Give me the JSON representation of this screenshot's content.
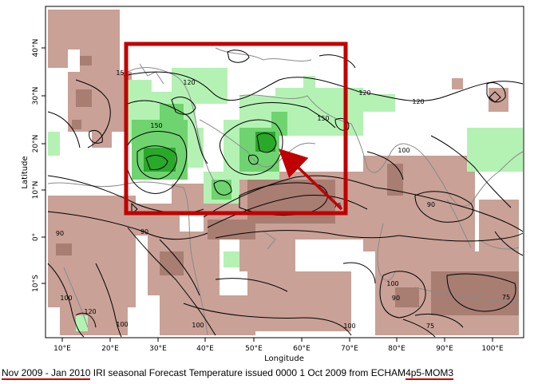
{
  "map": {
    "xlabel": "Longitude",
    "ylabel": "Latitude",
    "lon_ticks": [
      "10°E",
      "20°E",
      "30°E",
      "40°E",
      "50°E",
      "60°E",
      "70°E",
      "80°E",
      "90°E",
      "100°E"
    ],
    "lat_ticks": [
      "40°N",
      "30°N",
      "20°N",
      "10°N",
      "0°",
      "10°S"
    ],
    "contour_labels": [
      "150",
      "120",
      "150",
      "120",
      "150",
      "120",
      "100",
      "90",
      "90",
      "75",
      "90",
      "100",
      "120",
      "100",
      "100",
      "100",
      "90",
      "75",
      "75",
      "100",
      "100"
    ],
    "colors": {
      "below_normal": "#c9a196",
      "below_normal_strong": "#a87d72",
      "above_normal": "#b4f2b4",
      "above_normal_mid": "#6fd36f",
      "above_normal_strong": "#2aa82a",
      "highlight_box": "#c00000",
      "arrow": "#c00000"
    }
  },
  "caption": {
    "period": "Nov 2009 - Jan 2010",
    "middle": " IRI seasonal Forecast Temperature issued 0000 1 Oct 2009 from ECHAM",
    "model_suffix": "4p5-MOM3"
  }
}
